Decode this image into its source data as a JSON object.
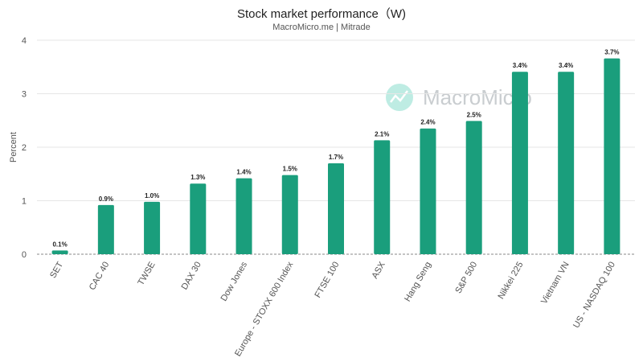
{
  "chart_data": {
    "type": "bar",
    "title": "Stock market performance（W)",
    "subtitle": "MacroMicro.me | Mitrade",
    "xlabel": "",
    "ylabel": "Percent",
    "ylim": [
      0,
      4
    ],
    "yticks": [
      0,
      1,
      2,
      3,
      4
    ],
    "grid": true,
    "bar_color": "#1a9e7c",
    "categories": [
      "SET",
      "CAC 40",
      "TWSE",
      "DAX 30",
      "Dow Jones",
      "Europe - STOXX 600 Index",
      "FTSE 100",
      "ASX",
      "Hang Seng",
      "S&P 500",
      "Nikkei 225",
      "Vietnam VN",
      "US - NASDAQ 100"
    ],
    "values": [
      0.07,
      0.92,
      0.98,
      1.32,
      1.42,
      1.48,
      1.7,
      2.13,
      2.35,
      2.49,
      3.41,
      3.41,
      3.66
    ],
    "data_labels": [
      "0.1%",
      "0.9%",
      "1.0%",
      "1.3%",
      "1.4%",
      "1.5%",
      "1.7%",
      "2.1%",
      "2.4%",
      "2.5%",
      "3.4%",
      "3.4%",
      "3.7%"
    ]
  },
  "watermark": {
    "text": "MacroMicro",
    "icon": "macromicro-logo-icon",
    "color": "#a8e6da"
  }
}
